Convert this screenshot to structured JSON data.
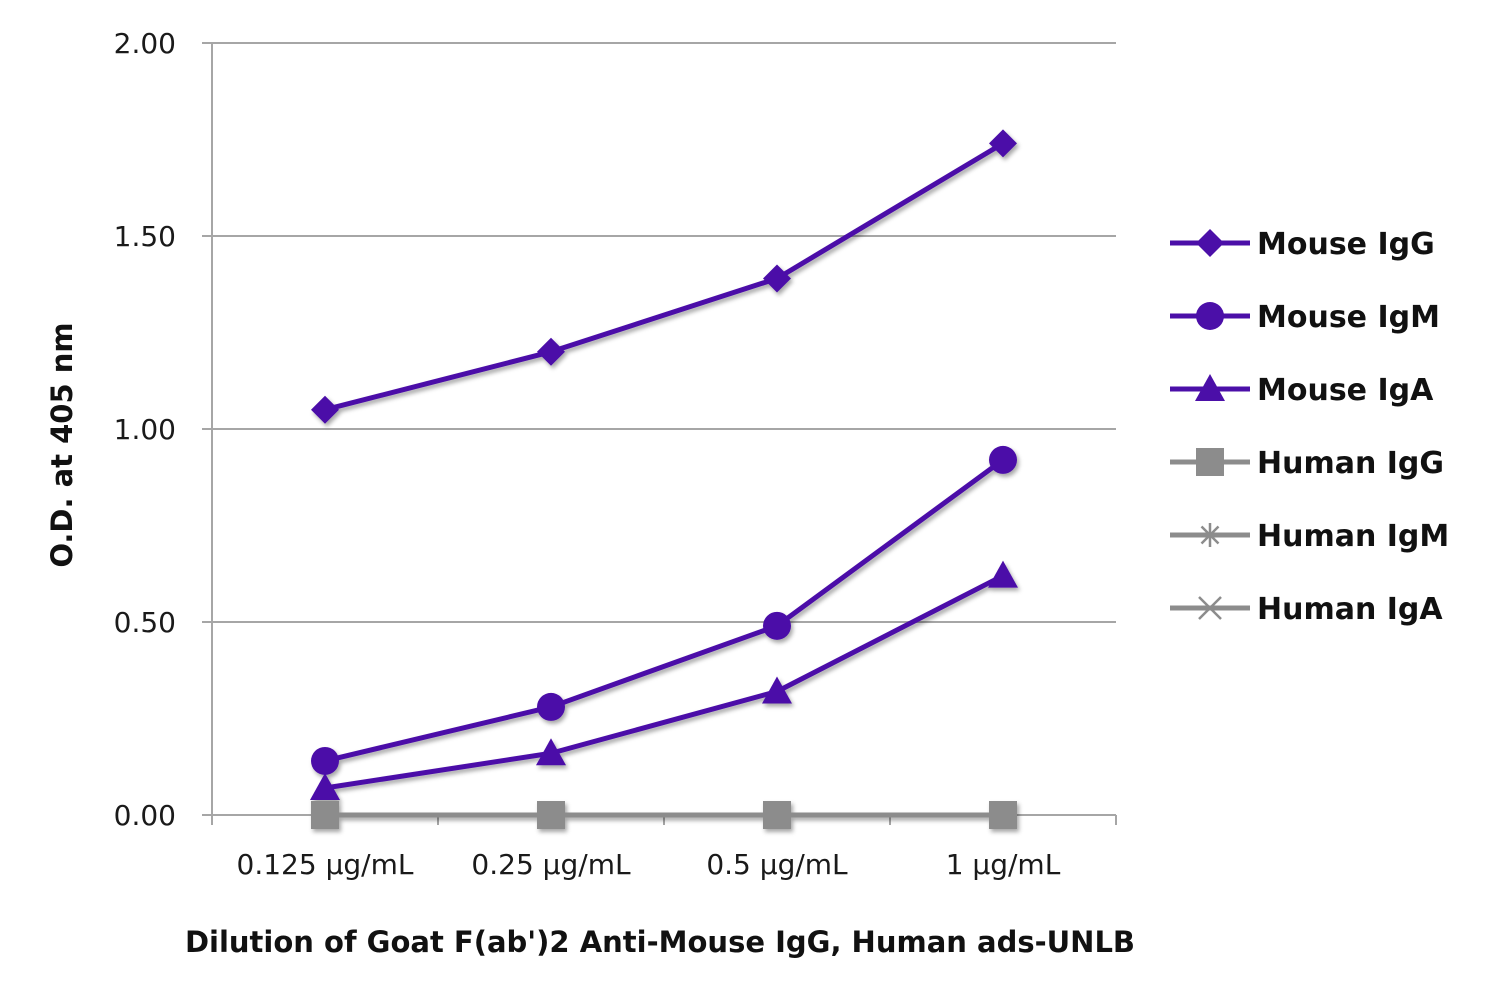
{
  "chart_data": {
    "type": "line",
    "categories": [
      "0.125 µg/mL",
      "0.25 µg/mL",
      "0.5 µg/mL",
      "1 µg/mL"
    ],
    "series": [
      {
        "name": "Mouse IgG",
        "marker": "diamond",
        "color": "#4B0FA8",
        "values": [
          1.05,
          1.2,
          1.39,
          1.74
        ]
      },
      {
        "name": "Mouse IgM",
        "marker": "circle",
        "color": "#4B0FA8",
        "values": [
          0.14,
          0.28,
          0.49,
          0.92
        ]
      },
      {
        "name": "Mouse IgA",
        "marker": "triangle",
        "color": "#4B0FA8",
        "values": [
          0.07,
          0.16,
          0.32,
          0.62
        ]
      },
      {
        "name": "Human IgG",
        "marker": "square",
        "color": "#8C8C8C",
        "values": [
          0.0,
          0.0,
          0.0,
          0.0
        ]
      },
      {
        "name": "Human IgM",
        "marker": "star",
        "color": "#8C8C8C",
        "values": [
          0.0,
          0.0,
          0.0,
          0.0
        ]
      },
      {
        "name": "Human IgA",
        "marker": "x",
        "color": "#8C8C8C",
        "values": [
          0.0,
          0.0,
          0.0,
          0.0
        ]
      }
    ],
    "yticks": [
      "0.00",
      "0.50",
      "1.00",
      "1.50",
      "2.00"
    ],
    "ylim": [
      0,
      2
    ],
    "xlabel": "Dilution of Goat F(ab')2 Anti-Mouse IgG, Human ads-UNLB",
    "ylabel": "O.D. at 405 nm",
    "grid": true,
    "legend_position": "right"
  }
}
